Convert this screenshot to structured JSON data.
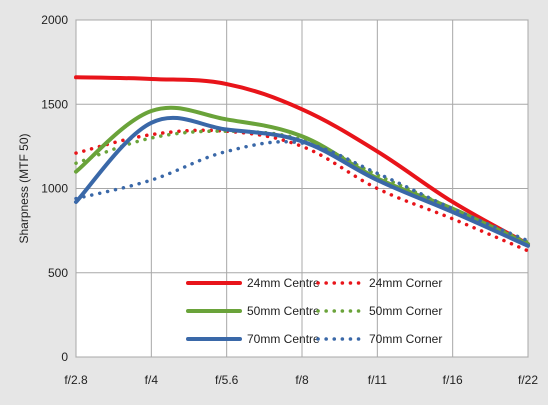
{
  "chart_data": {
    "type": "line",
    "title": "",
    "xlabel": "",
    "ylabel": "Sharpness (MTF 50)",
    "x": [
      "f/2.8",
      "f/4",
      "f/5.6",
      "f/8",
      "f/11",
      "f/16",
      "f/22"
    ],
    "ylim": [
      0,
      2000
    ],
    "yticks": [
      0,
      500,
      1000,
      1500,
      2000
    ],
    "grid": true,
    "legend_position": "bottom-center",
    "series": [
      {
        "name": "24mm Centre",
        "style": "solid",
        "color": "#e8141a",
        "values": [
          1660,
          1650,
          1620,
          1470,
          1220,
          920,
          670
        ]
      },
      {
        "name": "24mm Corner",
        "style": "dotted",
        "color": "#e8141a",
        "values": [
          1210,
          1320,
          1340,
          1250,
          1000,
          820,
          630
        ]
      },
      {
        "name": "50mm Centre",
        "style": "solid",
        "color": "#6aa33a",
        "values": [
          1100,
          1460,
          1410,
          1310,
          1060,
          880,
          670
        ]
      },
      {
        "name": "50mm Corner",
        "style": "dotted",
        "color": "#6aa33a",
        "values": [
          1150,
          1300,
          1340,
          1290,
          1080,
          880,
          680
        ]
      },
      {
        "name": "70mm Centre",
        "style": "solid",
        "color": "#3a68a8",
        "values": [
          920,
          1390,
          1350,
          1280,
          1050,
          860,
          660
        ]
      },
      {
        "name": "70mm Corner",
        "style": "dotted",
        "color": "#3a68a8",
        "values": [
          940,
          1050,
          1220,
          1270,
          1090,
          880,
          690
        ]
      }
    ]
  }
}
